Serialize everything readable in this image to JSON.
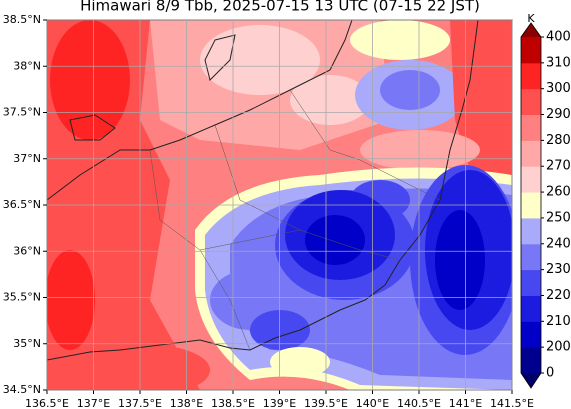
{
  "map": {
    "title": "Himawari 8/9 Tbb, 2025-07-15 13 UTC (07-15 22 JST)",
    "xlim": [
      136.5,
      141.5
    ],
    "ylim": [
      34.5,
      38.5
    ],
    "xticks": [
      {
        "value": 136.5,
        "label": "136.5°E"
      },
      {
        "value": 137,
        "label": "137°E"
      },
      {
        "value": 137.5,
        "label": "137.5°E"
      },
      {
        "value": 138,
        "label": "138°E"
      },
      {
        "value": 138.5,
        "label": "138.5°E"
      },
      {
        "value": 139,
        "label": "139°E"
      },
      {
        "value": 139.5,
        "label": "139.5°E"
      },
      {
        "value": 140,
        "label": "140°E"
      },
      {
        "value": 140.5,
        "label": "140.5°E"
      },
      {
        "value": 141,
        "label": "141°E"
      },
      {
        "value": 141.5,
        "label": "141.5°E"
      }
    ],
    "yticks": [
      {
        "value": 34.5,
        "label": "34.5°N"
      },
      {
        "value": 35,
        "label": "35°N"
      },
      {
        "value": 35.5,
        "label": "35.5°N"
      },
      {
        "value": 36,
        "label": "36°N"
      },
      {
        "value": 36.5,
        "label": "36.5°N"
      },
      {
        "value": 37,
        "label": "37°N"
      },
      {
        "value": 37.5,
        "label": "37.5°N"
      },
      {
        "value": 38,
        "label": "38°N"
      },
      {
        "value": 38.5,
        "label": "38.5°N"
      }
    ],
    "grid": true,
    "colorbar": {
      "label": "K",
      "ticks": [
        0,
        200,
        210,
        220,
        230,
        240,
        250,
        260,
        270,
        280,
        290,
        300,
        310,
        400
      ],
      "colors": [
        "#00008f",
        "#0000c8",
        "#1c1ce0",
        "#4848f0",
        "#7878f6",
        "#aaaafa",
        "#ffffc8",
        "#ffd0d0",
        "#ffa8a8",
        "#ff8080",
        "#ff5050",
        "#ff2424",
        "#c00000"
      ],
      "under_color": "#00006b",
      "over_color": "#8b0000"
    }
  }
}
